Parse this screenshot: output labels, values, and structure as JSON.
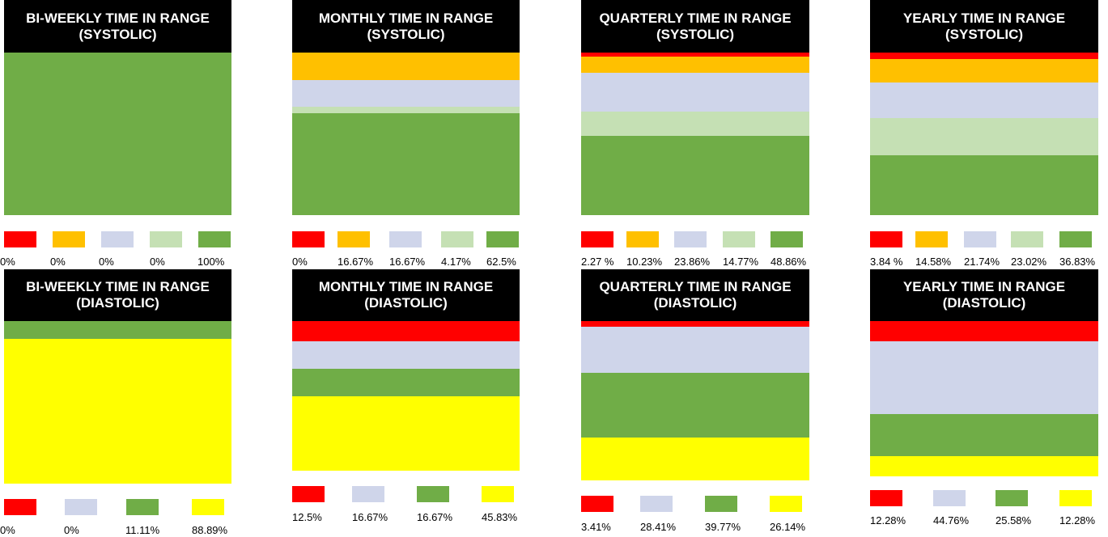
{
  "colors": {
    "red": "#ff0000",
    "orange": "#ffc000",
    "lavender": "#cfd5ea",
    "light_green": "#c5e0b4",
    "green": "#70ad47",
    "yellow": "#ffff00"
  },
  "chart_data": [
    {
      "type": "bar",
      "title": "BI-WEEKLY TIME IN RANGE (SYSTOLIC)",
      "stacked": true,
      "segments": [
        {
          "color": "red",
          "value": 0,
          "label": "0%"
        },
        {
          "color": "orange",
          "value": 0,
          "label": "0%"
        },
        {
          "color": "lavender",
          "value": 0,
          "label": "0%"
        },
        {
          "color": "light_green",
          "value": 0,
          "label": "0%"
        },
        {
          "color": "green",
          "value": 100,
          "label": "100%"
        }
      ]
    },
    {
      "type": "bar",
      "title": "MONTHLY TIME IN RANGE (SYSTOLIC)",
      "stacked": true,
      "segments": [
        {
          "color": "red",
          "value": 0,
          "label": "0%"
        },
        {
          "color": "orange",
          "value": 16.67,
          "label": "16.67%"
        },
        {
          "color": "lavender",
          "value": 16.67,
          "label": "16.67%"
        },
        {
          "color": "light_green",
          "value": 4.17,
          "label": "4.17%"
        },
        {
          "color": "green",
          "value": 62.5,
          "label": "62.5%"
        }
      ]
    },
    {
      "type": "bar",
      "title": "QUARTERLY TIME IN RANGE (SYSTOLIC)",
      "stacked": true,
      "segments": [
        {
          "color": "red",
          "value": 2.27,
          "label": "2.27 %"
        },
        {
          "color": "orange",
          "value": 10.23,
          "label": "10.23%"
        },
        {
          "color": "lavender",
          "value": 23.86,
          "label": "23.86%"
        },
        {
          "color": "light_green",
          "value": 14.77,
          "label": "14.77%"
        },
        {
          "color": "green",
          "value": 48.86,
          "label": "48.86%"
        }
      ]
    },
    {
      "type": "bar",
      "title": "YEARLY TIME IN RANGE (SYSTOLIC)",
      "stacked": true,
      "segments": [
        {
          "color": "red",
          "value": 3.84,
          "label": "3.84 %"
        },
        {
          "color": "orange",
          "value": 14.58,
          "label": "14.58%"
        },
        {
          "color": "lavender",
          "value": 21.74,
          "label": "21.74%"
        },
        {
          "color": "light_green",
          "value": 23.02,
          "label": "23.02%"
        },
        {
          "color": "green",
          "value": 36.83,
          "label": "36.83%"
        }
      ]
    },
    {
      "type": "bar",
      "title": "BI-WEEKLY TIME IN RANGE (DIASTOLIC)",
      "stacked": true,
      "segments": [
        {
          "color": "red",
          "value": 0,
          "label": "0%"
        },
        {
          "color": "lavender",
          "value": 0,
          "label": "0%"
        },
        {
          "color": "green",
          "value": 11.11,
          "label": "11.11%"
        },
        {
          "color": "yellow",
          "value": 88.89,
          "label": "88.89%"
        }
      ]
    },
    {
      "type": "bar",
      "title": "MONTHLY TIME IN RANGE (DIASTOLIC)",
      "stacked": true,
      "segments": [
        {
          "color": "red",
          "value": 12.5,
          "label": "12.5%"
        },
        {
          "color": "lavender",
          "value": 16.67,
          "label": "16.67%"
        },
        {
          "color": "green",
          "value": 16.67,
          "label": "16.67%"
        },
        {
          "color": "yellow",
          "value": 45.83,
          "label": "45.83%"
        }
      ]
    },
    {
      "type": "bar",
      "title": "QUARTERLY TIME IN RANGE (DIASTOLIC)",
      "stacked": true,
      "segments": [
        {
          "color": "red",
          "value": 3.41,
          "label": "3.41%"
        },
        {
          "color": "lavender",
          "value": 28.41,
          "label": "28.41%"
        },
        {
          "color": "green",
          "value": 39.77,
          "label": "39.77%"
        },
        {
          "color": "yellow",
          "value": 26.14,
          "label": "26.14%"
        }
      ]
    },
    {
      "type": "bar",
      "title": "YEARLY TIME IN RANGE (DIASTOLIC)",
      "stacked": true,
      "segments": [
        {
          "color": "red",
          "value": 12.28,
          "label": "12.28%"
        },
        {
          "color": "lavender",
          "value": 44.76,
          "label": "44.76%"
        },
        {
          "color": "green",
          "value": 25.58,
          "label": "25.58%"
        },
        {
          "color": "yellow",
          "value": 12.28,
          "label": "12.28%"
        }
      ]
    }
  ]
}
